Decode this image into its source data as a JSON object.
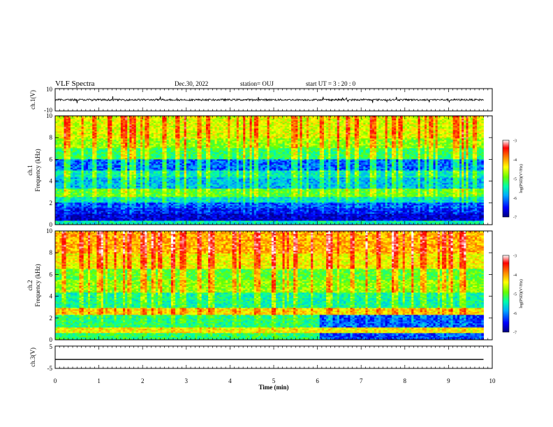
{
  "header": {
    "title": "VLF Spectra",
    "date": "Dec.30, 2022",
    "station": "station= OUJ",
    "start": "start  UT =   3  : 20 : 0"
  },
  "chart_data": [
    {
      "type": "line",
      "name": "ch1-waveform",
      "ylabel": "ch.1(V)",
      "ylim": [
        -10,
        10
      ],
      "yticks": [
        "10",
        "-10"
      ],
      "xlim": [
        0,
        10
      ],
      "line_color": "#000000",
      "approx_level": 0,
      "amplitude": "small noise around 0 V with spikes up to about +/-4 V"
    },
    {
      "type": "heatmap",
      "name": "ch1-spectrogram",
      "ylabel": "ch.1\nFrequency (kHz)",
      "ylim": [
        0,
        10
      ],
      "yticks": [
        "0",
        "2",
        "4",
        "6",
        "8",
        "10"
      ],
      "xlim": [
        0,
        10
      ],
      "data_end_min": 9.8,
      "colorbar": {
        "label": "log(PSD)(V²/Hz)",
        "range": [
          -7,
          -3
        ],
        "ticks": [
          "-3",
          "-4",
          "-5",
          "-6",
          "-7"
        ],
        "colormap": [
          "#000080",
          "#0000ff",
          "#00aaff",
          "#00ffaa",
          "#66ff00",
          "#ffff00",
          "#ff8000",
          "#ff0000",
          "#ffffff"
        ]
      },
      "bands": [
        {
          "fmin": 0.0,
          "fmax": 0.4,
          "level": -5.6
        },
        {
          "fmin": 0.4,
          "fmax": 1.0,
          "level": -6.7
        },
        {
          "fmin": 1.0,
          "fmax": 1.6,
          "level": -6.5
        },
        {
          "fmin": 1.6,
          "fmax": 2.0,
          "level": -6.3
        },
        {
          "fmin": 2.0,
          "fmax": 2.6,
          "level": -5.7
        },
        {
          "fmin": 2.6,
          "fmax": 3.3,
          "level": -5.1
        },
        {
          "fmin": 3.3,
          "fmax": 4.4,
          "level": -5.9
        },
        {
          "fmin": 4.4,
          "fmax": 5.0,
          "level": -5.6
        },
        {
          "fmin": 5.0,
          "fmax": 6.0,
          "level": -6.2
        },
        {
          "fmin": 6.0,
          "fmax": 7.0,
          "level": -5.3
        },
        {
          "fmin": 7.0,
          "fmax": 8.0,
          "level": -4.9
        },
        {
          "fmin": 8.0,
          "fmax": 10.0,
          "level": -4.6
        }
      ],
      "spike_times_min": [
        0.3,
        0.9,
        1.25,
        1.55,
        1.75,
        2.1,
        2.5,
        2.8,
        3.3,
        3.5,
        4.6,
        5.5,
        6.1,
        6.9,
        7.3,
        7.9,
        8.6,
        9.2,
        9.6
      ]
    },
    {
      "type": "heatmap",
      "name": "ch2-spectrogram",
      "ylabel": "ch.2\nFrequency (kHz)",
      "ylim": [
        0,
        10
      ],
      "yticks": [
        "0",
        "2",
        "4",
        "6",
        "8",
        "10"
      ],
      "xlim": [
        0,
        10
      ],
      "data_end_min": 9.8,
      "colorbar": {
        "label": "log(PSD)(V²/Hz)",
        "range": [
          -7,
          -3
        ],
        "ticks": [
          "-3",
          "-4",
          "-5",
          "-6",
          "-7"
        ],
        "colormap": [
          "#000080",
          "#0000ff",
          "#00aaff",
          "#00ffaa",
          "#66ff00",
          "#ffff00",
          "#ff8000",
          "#ff0000",
          "#ffffff"
        ]
      },
      "bands": [
        {
          "fmin": 0.0,
          "fmax": 0.7,
          "level": -5.3
        },
        {
          "fmin": 0.7,
          "fmax": 1.2,
          "level": -4.5
        },
        {
          "fmin": 1.2,
          "fmax": 2.3,
          "level": -5.4
        },
        {
          "fmin": 2.3,
          "fmax": 2.9,
          "level": -4.4
        },
        {
          "fmin": 2.9,
          "fmax": 4.3,
          "level": -5.5
        },
        {
          "fmin": 4.3,
          "fmax": 5.5,
          "level": -4.9
        },
        {
          "fmin": 5.5,
          "fmax": 6.5,
          "level": -5.1
        },
        {
          "fmin": 6.5,
          "fmax": 8.0,
          "level": -4.5
        },
        {
          "fmin": 8.0,
          "fmax": 10.0,
          "level": -4.2
        }
      ],
      "low_region_change_min": 6.05,
      "low_region_level_after": -6.3,
      "spike_times_min": [
        0.2,
        0.6,
        1.0,
        1.7,
        2.0,
        2.4,
        2.9,
        3.3,
        3.6,
        4.1,
        4.6,
        5.0,
        5.5,
        6.3,
        6.8,
        7.4,
        7.8,
        8.4,
        8.9,
        9.3
      ]
    },
    {
      "type": "line",
      "name": "ch3-waveform",
      "ylabel": "ch.3(V)",
      "ylim": [
        -5,
        5
      ],
      "yticks": [
        "5",
        "-5"
      ],
      "xlim": [
        0,
        10
      ],
      "line_color": "#000000",
      "x": [
        0,
        9.8
      ],
      "y": [
        -1,
        -1
      ]
    }
  ],
  "xaxis": {
    "label": "Time  (min)",
    "ticks": [
      "0",
      "1",
      "2",
      "3",
      "4",
      "5",
      "6",
      "7",
      "8",
      "9",
      "10"
    ],
    "range": [
      0,
      10
    ]
  }
}
